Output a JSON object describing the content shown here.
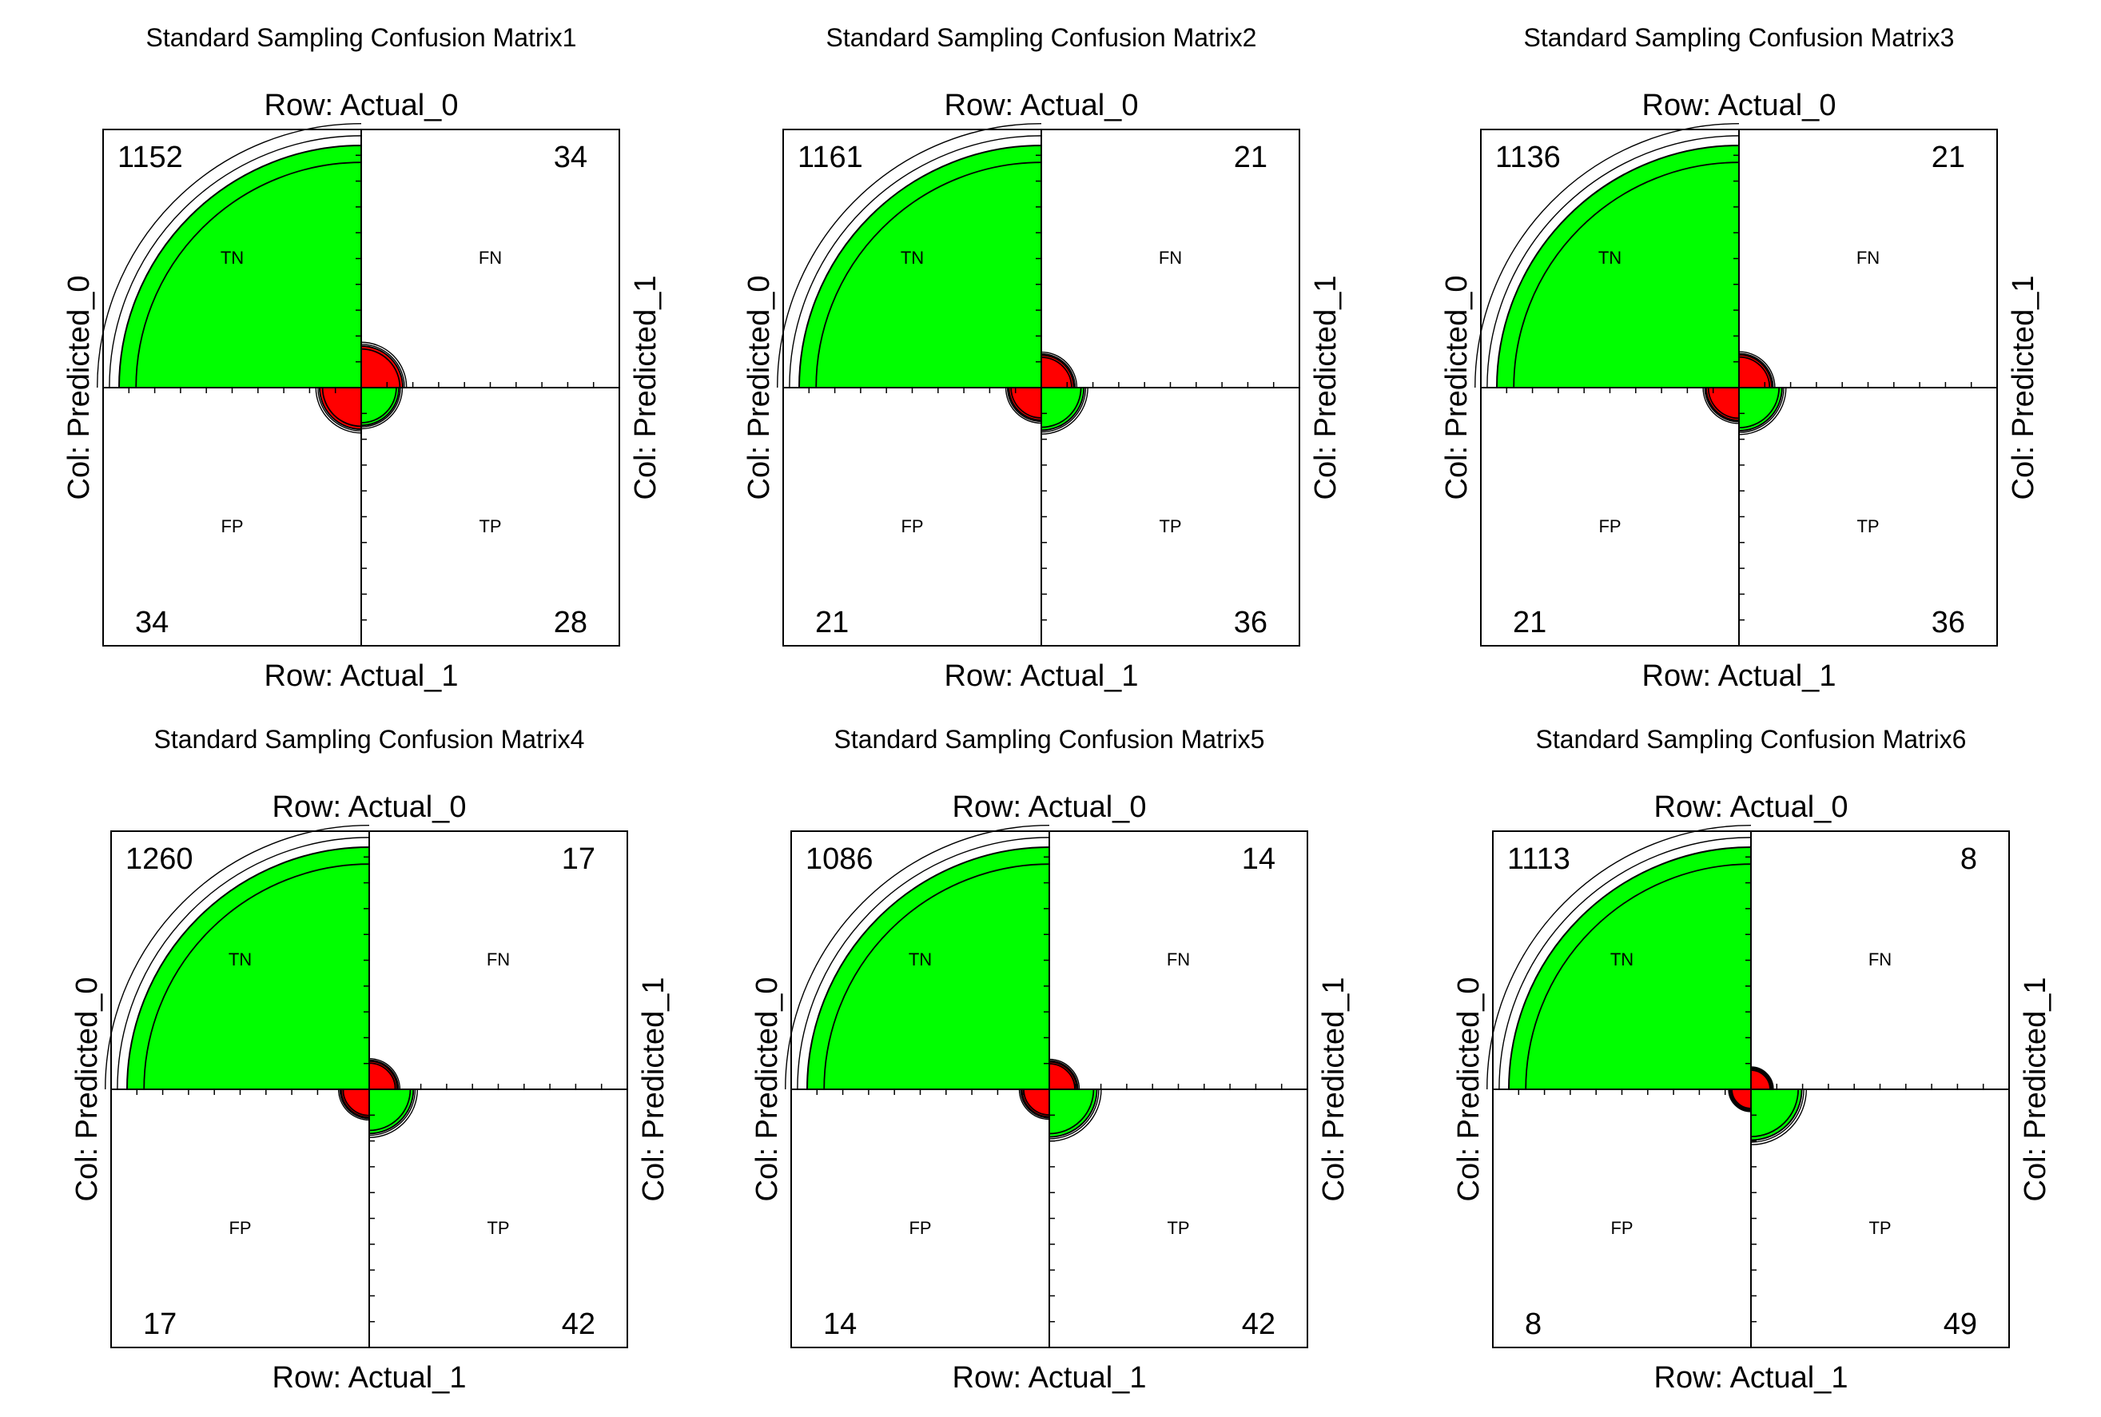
{
  "colors": {
    "large_fill": "#00ff00",
    "small_fill": "#ff0000",
    "stroke": "#000000",
    "background": "#ffffff"
  },
  "chart_data": [
    {
      "type": "fourfold",
      "title": "Standard Sampling Confusion Matrix1",
      "row_top_label": "Row: Actual_0",
      "row_bottom_label": "Row: Actual_1",
      "col_left_label": "Col: Predicted_0",
      "col_right_label": "Col: Predicted_1",
      "quadrant_labels": {
        "tl": "TN",
        "tr": "FN",
        "bl": "FP",
        "br": "TP"
      },
      "counts": {
        "tl": 1152,
        "tr": 34,
        "bl": 34,
        "br": 28
      }
    },
    {
      "type": "fourfold",
      "title": "Standard Sampling Confusion Matrix2",
      "row_top_label": "Row: Actual_0",
      "row_bottom_label": "Row: Actual_1",
      "col_left_label": "Col: Predicted_0",
      "col_right_label": "Col: Predicted_1",
      "quadrant_labels": {
        "tl": "TN",
        "tr": "FN",
        "bl": "FP",
        "br": "TP"
      },
      "counts": {
        "tl": 1161,
        "tr": 21,
        "bl": 21,
        "br": 36
      }
    },
    {
      "type": "fourfold",
      "title": "Standard Sampling Confusion Matrix3",
      "row_top_label": "Row: Actual_0",
      "row_bottom_label": "Row: Actual_1",
      "col_left_label": "Col: Predicted_0",
      "col_right_label": "Col: Predicted_1",
      "quadrant_labels": {
        "tl": "TN",
        "tr": "FN",
        "bl": "FP",
        "br": "TP"
      },
      "counts": {
        "tl": 1136,
        "tr": 21,
        "bl": 21,
        "br": 36
      }
    },
    {
      "type": "fourfold",
      "title": "Standard Sampling Confusion Matrix4",
      "row_top_label": "Row: Actual_0",
      "row_bottom_label": "Row: Actual_1",
      "col_left_label": "Col: Predicted_0",
      "col_right_label": "Col: Predicted_1",
      "quadrant_labels": {
        "tl": "TN",
        "tr": "FN",
        "bl": "FP",
        "br": "TP"
      },
      "counts": {
        "tl": 1260,
        "tr": 17,
        "bl": 17,
        "br": 42
      }
    },
    {
      "type": "fourfold",
      "title": "Standard Sampling Confusion Matrix5",
      "row_top_label": "Row: Actual_0",
      "row_bottom_label": "Row: Actual_1",
      "col_left_label": "Col: Predicted_0",
      "col_right_label": "Col: Predicted_1",
      "quadrant_labels": {
        "tl": "TN",
        "tr": "FN",
        "bl": "FP",
        "br": "TP"
      },
      "counts": {
        "tl": 1086,
        "tr": 14,
        "bl": 14,
        "br": 42
      }
    },
    {
      "type": "fourfold",
      "title": "Standard Sampling Confusion Matrix6",
      "row_top_label": "Row: Actual_0",
      "row_bottom_label": "Row: Actual_1",
      "col_left_label": "Col: Predicted_0",
      "col_right_label": "Col: Predicted_1",
      "quadrant_labels": {
        "tl": "TN",
        "tr": "FN",
        "bl": "FP",
        "br": "TP"
      },
      "counts": {
        "tl": 1113,
        "tr": 8,
        "bl": 8,
        "br": 49
      }
    }
  ]
}
